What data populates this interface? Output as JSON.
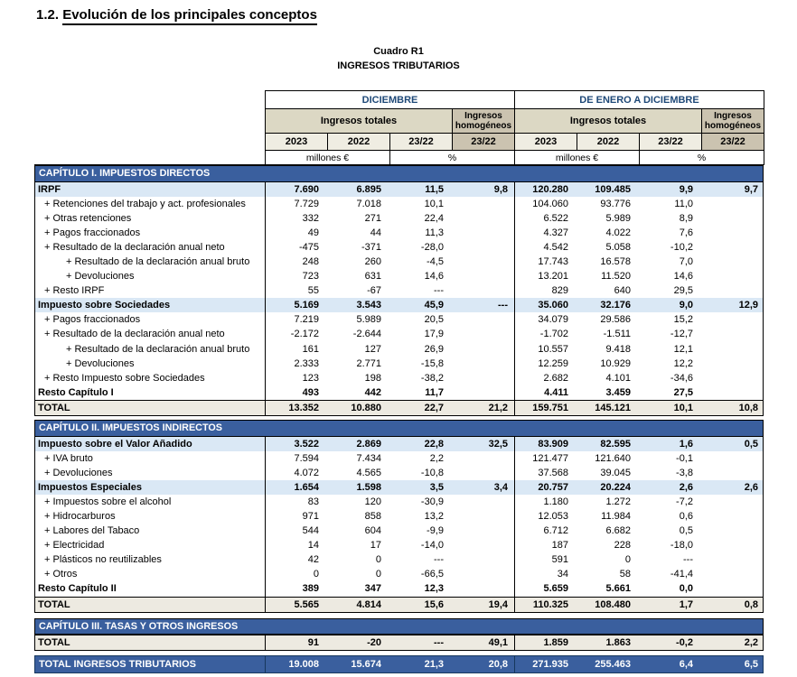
{
  "colors": {
    "band_blue": "#3A5F9E",
    "navy_text": "#1F4978",
    "subtotal_blue": "#DAE8F5",
    "total_beige": "#EDEAE1",
    "header_tan": "#DCD8C4",
    "header_dark_tan": "#CBC3B0",
    "header_year_bg": "#EFEDE2"
  },
  "page": {
    "section_title_num": "1.2.",
    "section_title": "Evolución de los principales conceptos",
    "table_label": "Cuadro R1",
    "table_title": "INGRESOS TRIBUTARIOS"
  },
  "header": {
    "left_group": "DICIEMBRE",
    "right_group": "DE ENERO A DICIEMBRE",
    "ingresos_totales": "Ingresos totales",
    "ingresos_homogeneos": "Ingresos homogéneos",
    "homog_year": "23/22",
    "years": [
      "2023",
      "2022",
      "23/22"
    ],
    "unit_amount": "millones €",
    "unit_pct": "%"
  },
  "table": {
    "columns": [
      "DIC 2023",
      "DIC 2022",
      "DIC 23/22 %",
      "DIC homogéneos 23/22 %",
      "ENE-DIC 2023",
      "ENE-DIC 2022",
      "ENE-DIC 23/22 %",
      "ENE-DIC homogéneos 23/22 %"
    ],
    "sections": [
      {
        "band": "CAPÍTULO I. IMPUESTOS DIRECTOS",
        "rows": [
          {
            "type": "subtotal",
            "label": "IRPF",
            "values": [
              "7.690",
              "6.895",
              "11,5",
              "9,8",
              "120.280",
              "109.485",
              "9,9",
              "9,7"
            ]
          },
          {
            "type": "item",
            "label": "+ Retenciones del trabajo y act. profesionales",
            "values": [
              "7.729",
              "7.018",
              "10,1",
              "",
              "104.060",
              "93.776",
              "11,0",
              ""
            ]
          },
          {
            "type": "item",
            "label": "+ Otras retenciones",
            "values": [
              "332",
              "271",
              "22,4",
              "",
              "6.522",
              "5.989",
              "8,9",
              ""
            ]
          },
          {
            "type": "item",
            "label": "+ Pagos fraccionados",
            "values": [
              "49",
              "44",
              "11,3",
              "",
              "4.327",
              "4.022",
              "7,6",
              ""
            ]
          },
          {
            "type": "item",
            "label": "+ Resultado de la declaración anual neto",
            "values": [
              "-475",
              "-371",
              "-28,0",
              "",
              "4.542",
              "5.058",
              "-10,2",
              ""
            ]
          },
          {
            "type": "item2",
            "label": "+ Resultado de la declaración anual bruto",
            "values": [
              "248",
              "260",
              "-4,5",
              "",
              "17.743",
              "16.578",
              "7,0",
              ""
            ]
          },
          {
            "type": "item2",
            "label": "+ Devoluciones",
            "values": [
              "723",
              "631",
              "14,6",
              "",
              "13.201",
              "11.520",
              "14,6",
              ""
            ]
          },
          {
            "type": "item",
            "label": "+ Resto IRPF",
            "values": [
              "55",
              "-67",
              "---",
              "",
              "829",
              "640",
              "29,5",
              ""
            ]
          },
          {
            "type": "subtotal",
            "label": "Impuesto sobre Sociedades",
            "values": [
              "5.169",
              "3.543",
              "45,9",
              "---",
              "35.060",
              "32.176",
              "9,0",
              "12,9"
            ]
          },
          {
            "type": "item",
            "label": "+ Pagos fraccionados",
            "values": [
              "7.219",
              "5.989",
              "20,5",
              "",
              "34.079",
              "29.586",
              "15,2",
              ""
            ]
          },
          {
            "type": "item",
            "label": "+ Resultado de la declaración anual neto",
            "values": [
              "-2.172",
              "-2.644",
              "17,9",
              "",
              "-1.702",
              "-1.511",
              "-12,7",
              ""
            ]
          },
          {
            "type": "item2",
            "label": "+ Resultado de la declaración anual bruto",
            "values": [
              "161",
              "127",
              "26,9",
              "",
              "10.557",
              "9.418",
              "12,1",
              ""
            ]
          },
          {
            "type": "item2",
            "label": "+ Devoluciones",
            "values": [
              "2.333",
              "2.771",
              "-15,8",
              "",
              "12.259",
              "10.929",
              "12,2",
              ""
            ]
          },
          {
            "type": "item",
            "label": "+ Resto Impuesto sobre Sociedades",
            "values": [
              "123",
              "198",
              "-38,2",
              "",
              "2.682",
              "4.101",
              "-34,6",
              ""
            ]
          },
          {
            "type": "bold",
            "label": "Resto Capítulo I",
            "values": [
              "493",
              "442",
              "11,7",
              "",
              "4.411",
              "3.459",
              "27,5",
              ""
            ]
          },
          {
            "type": "total",
            "label": "TOTAL",
            "values": [
              "13.352",
              "10.880",
              "22,7",
              "21,2",
              "159.751",
              "145.121",
              "10,1",
              "10,8"
            ]
          }
        ]
      },
      {
        "band": "CAPÍTULO II. IMPUESTOS INDIRECTOS",
        "rows": [
          {
            "type": "subtotal",
            "label": "Impuesto sobre el Valor Añadido",
            "values": [
              "3.522",
              "2.869",
              "22,8",
              "32,5",
              "83.909",
              "82.595",
              "1,6",
              "0,5"
            ]
          },
          {
            "type": "item",
            "label": "+ IVA bruto",
            "values": [
              "7.594",
              "7.434",
              "2,2",
              "",
              "121.477",
              "121.640",
              "-0,1",
              ""
            ]
          },
          {
            "type": "item",
            "label": "+ Devoluciones",
            "values": [
              "4.072",
              "4.565",
              "-10,8",
              "",
              "37.568",
              "39.045",
              "-3,8",
              ""
            ]
          },
          {
            "type": "subtotal",
            "label": "Impuestos Especiales",
            "values": [
              "1.654",
              "1.598",
              "3,5",
              "3,4",
              "20.757",
              "20.224",
              "2,6",
              "2,6"
            ]
          },
          {
            "type": "item",
            "label": "+ Impuestos sobre el alcohol",
            "values": [
              "83",
              "120",
              "-30,9",
              "",
              "1.180",
              "1.272",
              "-7,2",
              ""
            ]
          },
          {
            "type": "item",
            "label": "+ Hidrocarburos",
            "values": [
              "971",
              "858",
              "13,2",
              "",
              "12.053",
              "11.984",
              "0,6",
              ""
            ]
          },
          {
            "type": "item",
            "label": "+ Labores del Tabaco",
            "values": [
              "544",
              "604",
              "-9,9",
              "",
              "6.712",
              "6.682",
              "0,5",
              ""
            ]
          },
          {
            "type": "item",
            "label": "+ Electricidad",
            "values": [
              "14",
              "17",
              "-14,0",
              "",
              "187",
              "228",
              "-18,0",
              ""
            ]
          },
          {
            "type": "item",
            "label": "+ Plásticos no reutilizables",
            "values": [
              "42",
              "0",
              "---",
              "",
              "591",
              "0",
              "---",
              ""
            ]
          },
          {
            "type": "item",
            "label": "+ Otros",
            "values": [
              "0",
              "0",
              "-66,5",
              "",
              "34",
              "58",
              "-41,4",
              ""
            ]
          },
          {
            "type": "bold",
            "label": "Resto Capítulo II",
            "values": [
              "389",
              "347",
              "12,3",
              "",
              "5.659",
              "5.661",
              "0,0",
              ""
            ]
          },
          {
            "type": "total",
            "label": "TOTAL",
            "values": [
              "5.565",
              "4.814",
              "15,6",
              "19,4",
              "110.325",
              "108.480",
              "1,7",
              "0,8"
            ]
          }
        ]
      },
      {
        "band": "CAPÍTULO III. TASAS Y OTROS INGRESOS",
        "rows": [
          {
            "type": "total",
            "label": "TOTAL",
            "values": [
              "91",
              "-20",
              "---",
              "49,1",
              "1.859",
              "1.863",
              "-0,2",
              "2,2"
            ]
          }
        ]
      }
    ],
    "grand_total": {
      "label": "TOTAL INGRESOS TRIBUTARIOS",
      "values": [
        "19.008",
        "15.674",
        "21,3",
        "20,8",
        "271.935",
        "255.463",
        "6,4",
        "6,5"
      ]
    }
  }
}
